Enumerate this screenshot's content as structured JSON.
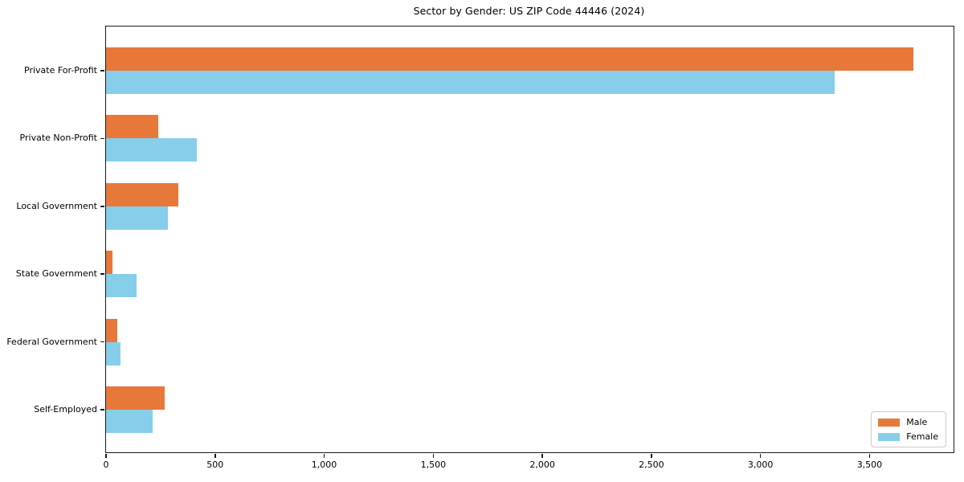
{
  "chart_data": {
    "type": "bar",
    "orientation": "horizontal",
    "title": "Sector by Gender: US ZIP Code 44446 (2024)",
    "categories": [
      "Private For-Profit",
      "Private Non-Profit",
      "Local Government",
      "State Government",
      "Federal Government",
      "Self-Employed"
    ],
    "series": [
      {
        "name": "Male",
        "color": "#E8783A",
        "values": [
          3700,
          240,
          330,
          30,
          50,
          270
        ]
      },
      {
        "name": "Female",
        "color": "#87CEEB",
        "values": [
          3340,
          415,
          285,
          140,
          65,
          215
        ]
      }
    ],
    "xlim": [
      0,
      3885
    ],
    "x_ticks": [
      0,
      500,
      1000,
      1500,
      2000,
      2500,
      3000,
      3500
    ],
    "x_tick_labels": [
      "0",
      "500",
      "1,000",
      "1,500",
      "2,000",
      "2,500",
      "3,000",
      "3,500"
    ],
    "ylabel": "",
    "xlabel": "",
    "grid": false,
    "legend": {
      "position": "lower right"
    },
    "colors": {
      "male": "#E8783A",
      "female": "#87CEEB",
      "spine": "#1a1a1a",
      "legend_border": "#cccccc"
    }
  }
}
